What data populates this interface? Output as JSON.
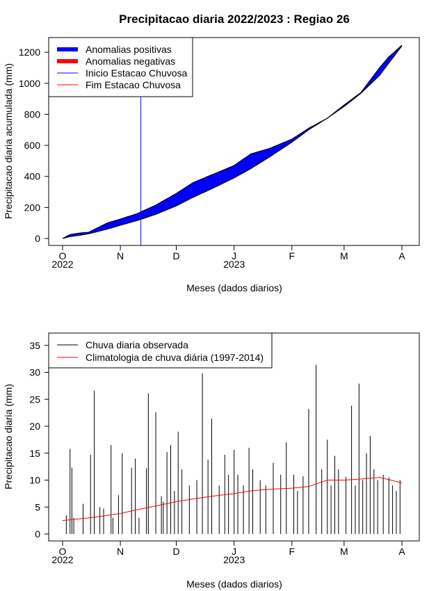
{
  "chart_data": [
    {
      "type": "area",
      "title": "Precipitacao diaria 2022/2023 : Regiao 26",
      "xlabel": "Meses (dados diarios)",
      "ylabel": "Precipitacao diaria acumulada (mm)",
      "ylim": [
        0,
        1250
      ],
      "y_ticks": [
        0,
        200,
        400,
        600,
        800,
        1000,
        1200
      ],
      "xlim": [
        "2022-10-01",
        "2023-04-01"
      ],
      "x_ticks": [
        {
          "date": "2022-10-01",
          "label": "O"
        },
        {
          "date": "2022-11-01",
          "label": "N"
        },
        {
          "date": "2022-12-01",
          "label": "D"
        },
        {
          "date": "2023-01-01",
          "label": "J"
        },
        {
          "date": "2023-02-01",
          "label": "F"
        },
        {
          "date": "2023-03-01",
          "label": "M"
        },
        {
          "date": "2023-04-01",
          "label": "A"
        }
      ],
      "year_labels": [
        {
          "date": "2022-10-01",
          "label": "2022"
        },
        {
          "date": "2023-01-01",
          "label": "2023"
        }
      ],
      "legend_position": "top-left",
      "legend": [
        {
          "label": "Anomalias positivas",
          "color": "#0000ff",
          "style": "thick"
        },
        {
          "label": "Anomalias negativas",
          "color": "#ff0000",
          "style": "thick"
        },
        {
          "label": "Inicio Estacao Chuvosa",
          "color": "#0000ff",
          "style": "thin"
        },
        {
          "label": "Fim Estacao Chuvosa",
          "color": "#ff0000",
          "style": "thin"
        }
      ],
      "rainy_season_start": "2022-11-12",
      "series": [
        {
          "name": "observed_cumulative",
          "x": [
            "2022-10-01",
            "2022-10-05",
            "2022-10-10",
            "2022-10-15",
            "2022-10-20",
            "2022-10-25",
            "2022-11-01",
            "2022-11-10",
            "2022-11-20",
            "2022-12-01",
            "2022-12-10",
            "2022-12-20",
            "2023-01-01",
            "2023-01-10",
            "2023-01-20",
            "2023-02-01",
            "2023-02-10",
            "2023-02-20",
            "2023-03-01",
            "2023-03-10",
            "2023-03-20",
            "2023-03-25",
            "2023-04-01"
          ],
          "y": [
            0,
            25,
            35,
            40,
            70,
            100,
            125,
            160,
            215,
            290,
            360,
            410,
            470,
            545,
            580,
            640,
            710,
            775,
            860,
            940,
            1100,
            1170,
            1245
          ]
        },
        {
          "name": "climatology_cumulative",
          "x": [
            "2022-10-01",
            "2022-10-05",
            "2022-10-10",
            "2022-10-15",
            "2022-10-20",
            "2022-10-25",
            "2022-11-01",
            "2022-11-10",
            "2022-11-20",
            "2022-12-01",
            "2022-12-10",
            "2022-12-20",
            "2023-01-01",
            "2023-01-10",
            "2023-01-20",
            "2023-02-01",
            "2023-02-10",
            "2023-02-20",
            "2023-03-01",
            "2023-03-10",
            "2023-03-20",
            "2023-03-25",
            "2023-04-01"
          ],
          "y": [
            0,
            12,
            20,
            30,
            45,
            60,
            85,
            115,
            155,
            210,
            265,
            320,
            390,
            450,
            525,
            620,
            700,
            775,
            850,
            935,
            1050,
            1130,
            1240
          ]
        }
      ]
    },
    {
      "type": "bar",
      "xlabel": "Meses (dados diarios)",
      "ylabel": "Precipitacao diaria (mm)",
      "ylim": [
        0,
        36
      ],
      "y_ticks": [
        0,
        5,
        10,
        15,
        20,
        25,
        30,
        35
      ],
      "xlim": [
        "2022-10-01",
        "2023-04-01"
      ],
      "x_ticks": [
        {
          "date": "2022-10-01",
          "label": "O"
        },
        {
          "date": "2022-11-01",
          "label": "N"
        },
        {
          "date": "2022-12-01",
          "label": "D"
        },
        {
          "date": "2023-01-01",
          "label": "J"
        },
        {
          "date": "2023-02-01",
          "label": "F"
        },
        {
          "date": "2023-03-01",
          "label": "M"
        },
        {
          "date": "2023-04-01",
          "label": "A"
        }
      ],
      "year_labels": [
        {
          "date": "2022-10-01",
          "label": "2022"
        },
        {
          "date": "2023-01-01",
          "label": "2023"
        }
      ],
      "legend_position": "top-left",
      "legend": [
        {
          "label": "Chuva diaria observada",
          "color": "#000000"
        },
        {
          "label": "Climatologia de chuva diária (1997-2014)",
          "color": "#ff0000"
        }
      ],
      "series": [
        {
          "name": "Chuva diaria observada",
          "x": [
            "2022-10-03",
            "2022-10-05",
            "2022-10-06",
            "2022-10-07",
            "2022-10-12",
            "2022-10-16",
            "2022-10-18",
            "2022-10-21",
            "2022-10-23",
            "2022-10-27",
            "2022-10-28",
            "2022-10-31",
            "2022-11-02",
            "2022-11-07",
            "2022-11-09",
            "2022-11-11",
            "2022-11-15",
            "2022-11-16",
            "2022-11-20",
            "2022-11-23",
            "2022-11-24",
            "2022-11-26",
            "2022-11-28",
            "2022-11-30",
            "2022-12-02",
            "2022-12-04",
            "2022-12-08",
            "2022-12-12",
            "2022-12-15",
            "2022-12-18",
            "2022-12-20",
            "2022-12-24",
            "2022-12-27",
            "2022-12-29",
            "2023-01-01",
            "2023-01-03",
            "2023-01-06",
            "2023-01-09",
            "2023-01-11",
            "2023-01-15",
            "2023-01-18",
            "2023-01-22",
            "2023-01-26",
            "2023-01-29",
            "2023-02-02",
            "2023-02-04",
            "2023-02-07",
            "2023-02-10",
            "2023-02-14",
            "2023-02-17",
            "2023-02-20",
            "2023-02-22",
            "2023-02-24",
            "2023-02-26",
            "2023-03-02",
            "2023-03-05",
            "2023-03-07",
            "2023-03-09",
            "2023-03-11",
            "2023-03-13",
            "2023-03-15",
            "2023-03-17",
            "2023-03-19",
            "2023-03-22",
            "2023-03-25",
            "2023-03-27",
            "2023-03-29",
            "2023-03-31"
          ],
          "y": [
            3.5,
            15.8,
            12.3,
            3,
            5.6,
            14.7,
            26.6,
            5,
            4.7,
            16.5,
            3,
            7.2,
            15,
            12.3,
            14,
            3,
            12.2,
            26.1,
            22.6,
            7,
            6,
            15.2,
            16.5,
            8,
            19,
            12,
            9,
            10,
            29.8,
            13.8,
            21.4,
            9,
            14.7,
            11,
            15.6,
            11,
            9,
            16,
            12,
            10,
            9,
            13.2,
            11,
            17,
            11,
            8,
            10.7,
            23.2,
            31.4,
            12,
            17.5,
            9,
            14.5,
            12,
            10.6,
            23.8,
            9,
            27.9,
            10,
            15,
            18.2,
            12,
            10,
            11,
            10.5,
            9,
            8,
            10
          ]
        },
        {
          "name": "Climatologia de chuva diária (1997-2014)",
          "x": [
            "2022-10-01",
            "2022-10-10",
            "2022-10-20",
            "2022-11-01",
            "2022-11-10",
            "2022-11-20",
            "2022-12-01",
            "2022-12-10",
            "2022-12-20",
            "2023-01-01",
            "2023-01-10",
            "2023-01-20",
            "2023-02-01",
            "2023-02-10",
            "2023-02-20",
            "2023-03-01",
            "2023-03-10",
            "2023-03-20",
            "2023-04-01"
          ],
          "y": [
            2.5,
            2.8,
            3.2,
            3.8,
            4.5,
            5.2,
            6,
            6.5,
            7,
            7.5,
            8,
            8.3,
            8.5,
            8.8,
            10,
            10,
            10.2,
            10.5,
            9.5
          ]
        }
      ]
    }
  ]
}
